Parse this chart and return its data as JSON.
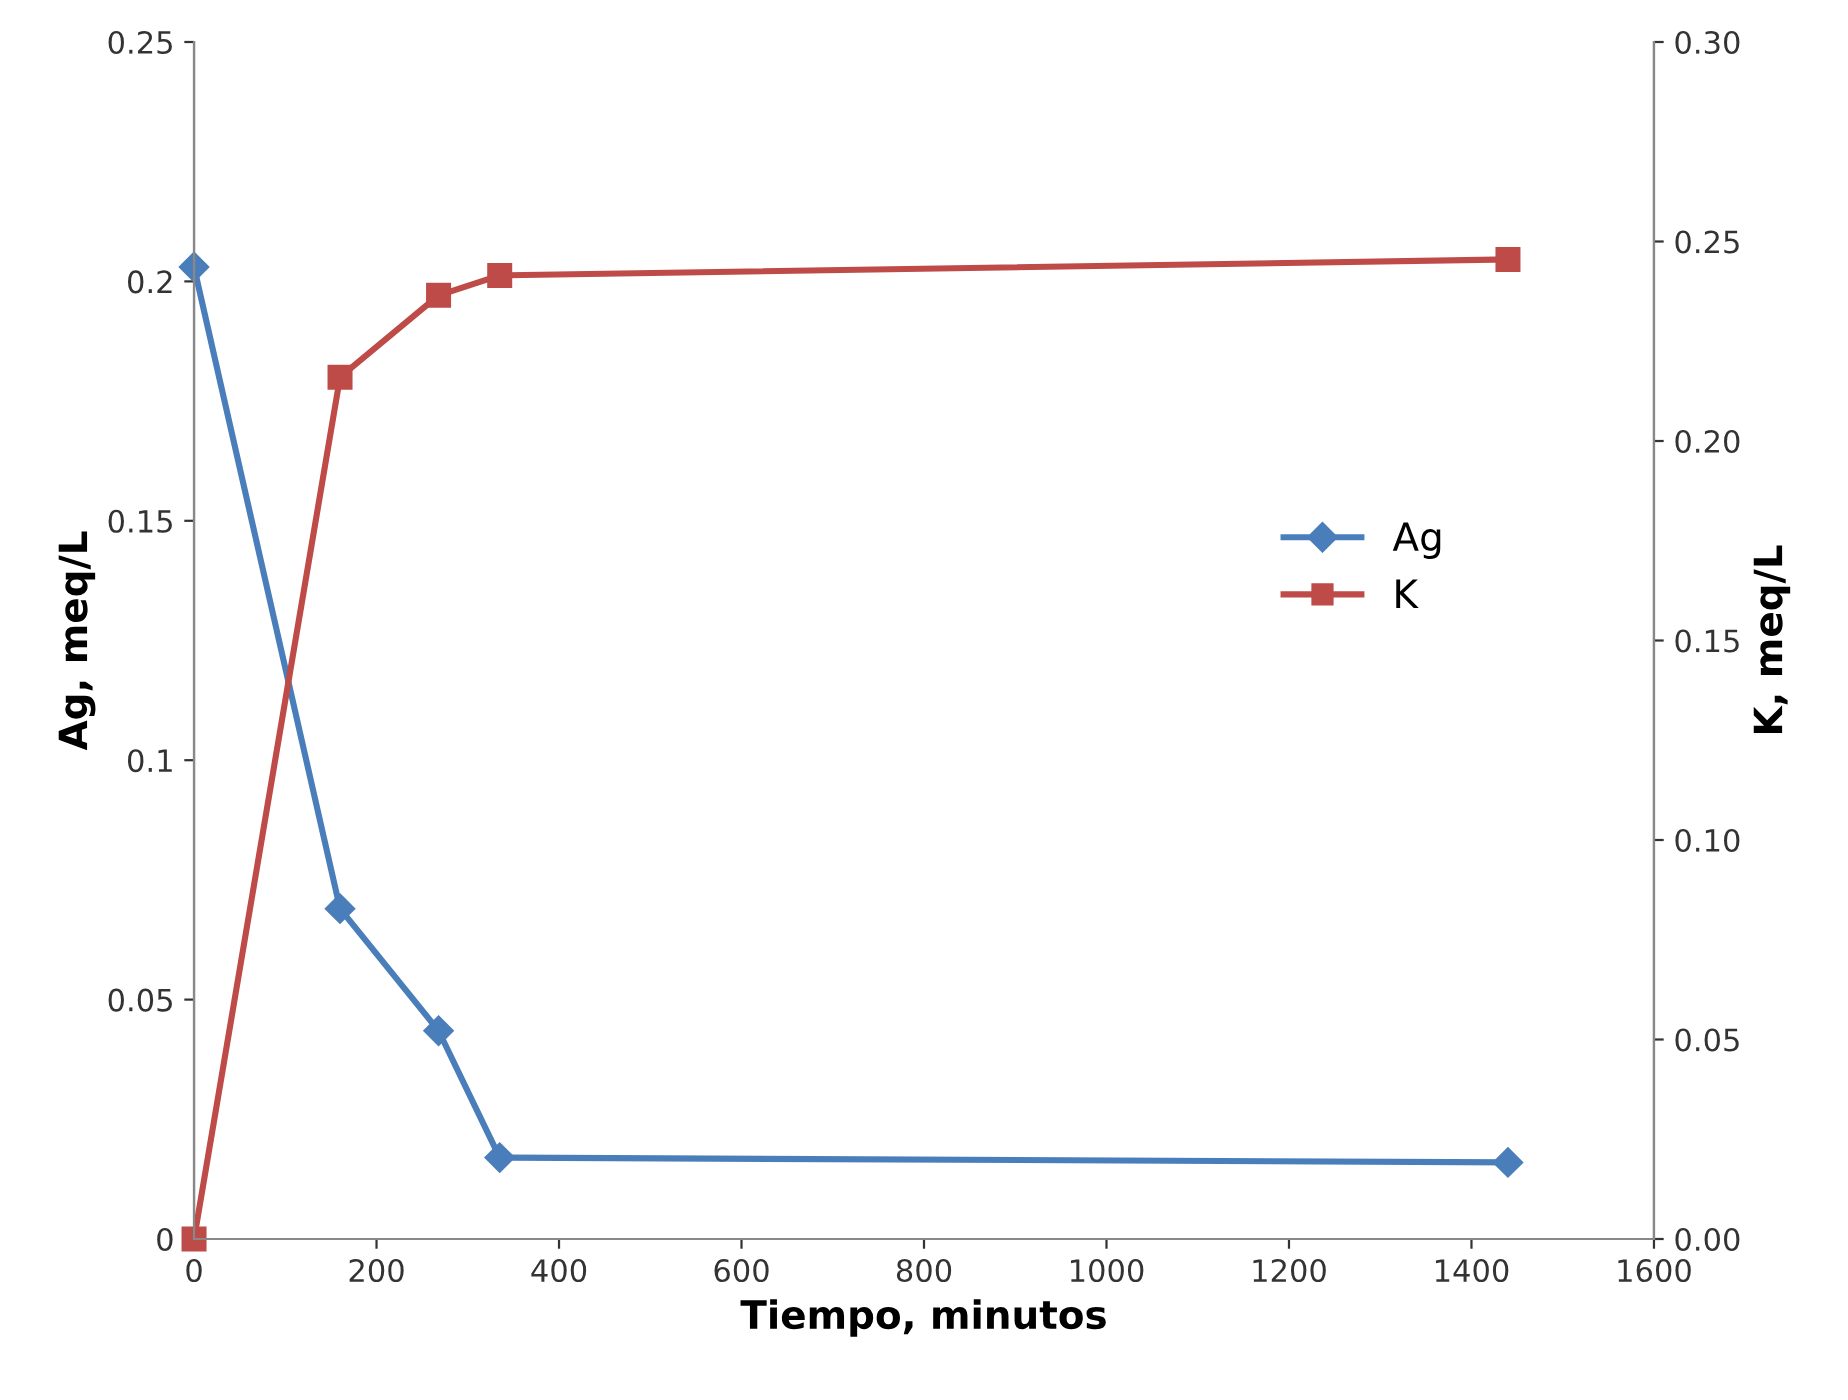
{
  "chart_data": {
    "type": "line",
    "xlabel": "Tiempo, minutos",
    "ylabel": "Ag, meq/L",
    "y2label": "K, meq/L",
    "xlim": [
      0,
      1600
    ],
    "xticks": [
      0,
      200,
      400,
      600,
      800,
      1000,
      1200,
      1400,
      1600
    ],
    "ylim": [
      0,
      0.25
    ],
    "yticks": [
      0,
      0.05,
      0.1,
      0.15,
      0.2,
      0.25
    ],
    "y2lim": [
      0,
      0.3
    ],
    "y2ticks": [
      {
        "value": 0,
        "label": "0.00"
      },
      {
        "value": 0.05,
        "label": "0.05"
      },
      {
        "value": 0.1,
        "label": "0.10"
      },
      {
        "value": 0.15,
        "label": "0.15"
      },
      {
        "value": 0.2,
        "label": "0.20"
      },
      {
        "value": 0.25,
        "label": "0.25"
      },
      {
        "value": 0.3,
        "label": "0.30"
      }
    ],
    "grid": false,
    "legend": "right",
    "line_style": "solid",
    "series": [
      {
        "name": "Ag",
        "color": "#4a7ebb",
        "marker": "diamond",
        "x": [
          0,
          160,
          268,
          335,
          1440
        ],
        "values": [
          0.203,
          0.069,
          0.0435,
          0.017,
          0.016
        ]
      },
      {
        "name": "K",
        "color": "#be4b48",
        "marker": "square",
        "axis": "y2",
        "x": [
          0,
          160,
          268,
          335,
          1440
        ],
        "values": [
          0,
          0.216,
          0.2365,
          0.2415,
          0.2455
        ]
      }
    ]
  }
}
